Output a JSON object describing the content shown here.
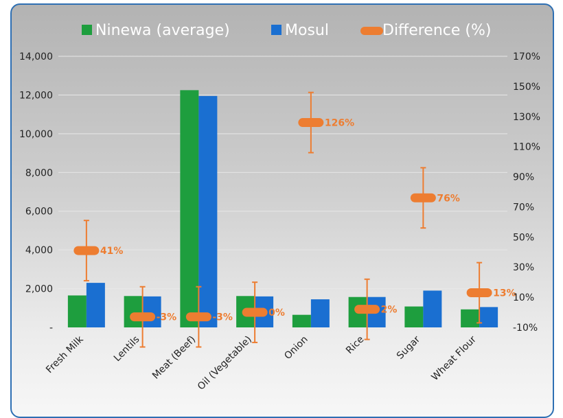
{
  "chart_data": {
    "type": "bar",
    "title": "",
    "categories": [
      "Fresh Milk",
      "Lentils",
      "Meat (Beef)",
      "Oil (Vegetable)",
      "Onion",
      "Rice",
      "Sugar",
      "Wheat Flour"
    ],
    "series": [
      {
        "name": "Ninewa (average)",
        "axis": "left",
        "color": "#1e9e3e",
        "values": [
          1650,
          1620,
          12250,
          1620,
          650,
          1570,
          1080,
          930
        ]
      },
      {
        "name": "Mosul",
        "axis": "left",
        "color": "#1a6fd1",
        "values": [
          2300,
          1600,
          11950,
          1600,
          1450,
          1570,
          1900,
          1050
        ]
      },
      {
        "name": "Difference (%)",
        "axis": "right",
        "type": "marker-with-error-bars",
        "color": "#ed7d31",
        "values": [
          41,
          -3,
          -3,
          0,
          126,
          2,
          76,
          13
        ],
        "labels": [
          "41%",
          "-3%",
          "-3%",
          "0%",
          "126%",
          "2%",
          "76%",
          "13%"
        ],
        "error_low": [
          21,
          -23,
          -23,
          -20,
          106,
          -18,
          56,
          -7
        ],
        "error_high": [
          61,
          17,
          17,
          20,
          146,
          22,
          96,
          33
        ]
      }
    ],
    "y_left": {
      "ylim": [
        0,
        14000
      ],
      "ticks": [
        0,
        2000,
        4000,
        6000,
        8000,
        10000,
        12000,
        14000
      ],
      "tick_labels": [
        "-",
        "2,000",
        "4,000",
        "6,000",
        "8,000",
        "10,000",
        "12,000",
        "14,000"
      ]
    },
    "y_right": {
      "ylim": [
        -10,
        170
      ],
      "ticks": [
        -10,
        10,
        30,
        50,
        70,
        90,
        110,
        130,
        150,
        170
      ],
      "tick_labels": [
        "-10%",
        "10%",
        "30%",
        "50%",
        "70%",
        "90%",
        "110%",
        "130%",
        "150%",
        "170%"
      ]
    },
    "grid": true,
    "legend_position": "top"
  },
  "colors": {
    "ninewa": "#1e9e3e",
    "mosul": "#1a6fd1",
    "difference": "#ed7d31",
    "border": "#2e6fb3"
  }
}
